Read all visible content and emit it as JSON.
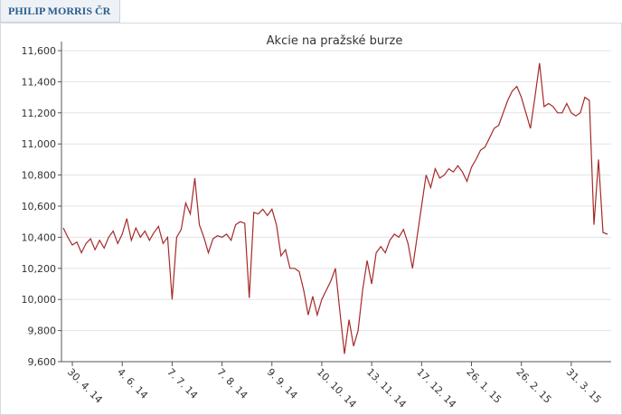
{
  "header": {
    "title": "PHILIP MORRIS ČR"
  },
  "chart_data": {
    "type": "line",
    "title": "Akcie na pražské burze",
    "color": "#a52a2a",
    "grid": true,
    "ylim": [
      9600,
      11600
    ],
    "yticks": [
      {
        "value": 9600,
        "label": "9,600"
      },
      {
        "value": 9800,
        "label": "9,800"
      },
      {
        "value": 10000,
        "label": "10,000"
      },
      {
        "value": 10200,
        "label": "10,200"
      },
      {
        "value": 10400,
        "label": "10,400"
      },
      {
        "value": 10600,
        "label": "10,600"
      },
      {
        "value": 10800,
        "label": "10,800"
      },
      {
        "value": 11000,
        "label": "11,000"
      },
      {
        "value": 11200,
        "label": "11,200"
      },
      {
        "value": 11400,
        "label": "11,400"
      },
      {
        "value": 11600,
        "label": "11,600"
      }
    ],
    "categories": [
      null,
      null,
      "30. 4. 14",
      null,
      null,
      null,
      null,
      null,
      null,
      null,
      null,
      null,
      null,
      "4. 6. 14",
      null,
      null,
      null,
      null,
      null,
      null,
      null,
      null,
      null,
      null,
      "7. 7. 14",
      null,
      null,
      null,
      null,
      null,
      null,
      null,
      null,
      null,
      null,
      "7. 8. 14",
      null,
      null,
      null,
      null,
      null,
      null,
      null,
      null,
      null,
      null,
      "9. 9. 14",
      null,
      null,
      null,
      null,
      null,
      null,
      null,
      null,
      null,
      null,
      "10. 10. 14",
      null,
      null,
      null,
      null,
      null,
      null,
      null,
      null,
      null,
      null,
      "13. 11. 14",
      null,
      null,
      null,
      null,
      null,
      null,
      null,
      null,
      null,
      null,
      "17. 12. 14",
      null,
      null,
      null,
      null,
      null,
      null,
      null,
      null,
      null,
      null,
      "26. 1. 15",
      null,
      null,
      null,
      null,
      null,
      null,
      null,
      null,
      null,
      null,
      "26. 2. 15",
      null,
      null,
      null,
      null,
      null,
      null,
      null,
      null,
      null,
      null,
      "31. 3. 15",
      null,
      null,
      null,
      null,
      null,
      null,
      null,
      null
    ],
    "values": [
      10460,
      10400,
      10350,
      10370,
      10300,
      10360,
      10390,
      10320,
      10380,
      10330,
      10400,
      10440,
      10360,
      10420,
      10520,
      10380,
      10460,
      10400,
      10440,
      10380,
      10430,
      10470,
      10360,
      10400,
      10000,
      10400,
      10450,
      10620,
      10550,
      10780,
      10480,
      10400,
      10300,
      10390,
      10410,
      10400,
      10420,
      10380,
      10480,
      10500,
      10490,
      10010,
      10560,
      10550,
      10580,
      10540,
      10580,
      10480,
      10280,
      10320,
      10200,
      10200,
      10180,
      10060,
      9900,
      10020,
      9900,
      10000,
      10060,
      10120,
      10200,
      9920,
      9650,
      9870,
      9700,
      9800,
      10060,
      10250,
      10100,
      10300,
      10340,
      10300,
      10380,
      10420,
      10400,
      10450,
      10360,
      10200,
      10400,
      10600,
      10800,
      10720,
      10840,
      10780,
      10800,
      10840,
      10820,
      10860,
      10820,
      10760,
      10850,
      10900,
      10960,
      10980,
      11040,
      11100,
      11120,
      11200,
      11280,
      11340,
      11370,
      11300,
      11200,
      11100,
      11300,
      11520,
      11240,
      11260,
      11240,
      11200,
      11200,
      11260,
      11200,
      11180,
      11200,
      11300,
      11280,
      10480,
      10900,
      10430,
      10420
    ]
  }
}
